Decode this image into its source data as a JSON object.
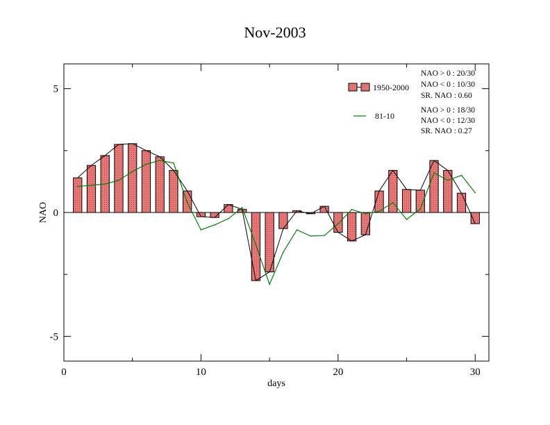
{
  "chart_data": {
    "type": "bar",
    "title": "Nov-2003",
    "xlabel": "days",
    "ylabel": "NAO",
    "xlim": [
      0,
      31
    ],
    "ylim": [
      -6,
      6
    ],
    "x_ticks": [
      0,
      10,
      20,
      30
    ],
    "x_tick_labels": [
      "0",
      "10",
      "20",
      "30"
    ],
    "y_ticks": [
      -5,
      0,
      5
    ],
    "y_tick_labels": [
      "-5",
      "0",
      "5"
    ],
    "grid": false,
    "legend_position": "top-right",
    "x": [
      1,
      2,
      3,
      4,
      5,
      6,
      7,
      8,
      9,
      10,
      11,
      12,
      13,
      14,
      15,
      16,
      17,
      18,
      19,
      20,
      21,
      22,
      23,
      24,
      25,
      26,
      27,
      28,
      29,
      30
    ],
    "series": [
      {
        "name": "1950-2000",
        "render": "bar",
        "fill": "#e87878",
        "values": [
          1.4,
          1.9,
          2.3,
          2.75,
          2.78,
          2.5,
          2.25,
          1.7,
          0.87,
          -0.17,
          -0.2,
          0.32,
          0.13,
          -2.75,
          -2.4,
          -0.65,
          0.07,
          -0.05,
          0.25,
          -0.8,
          -1.15,
          -0.9,
          0.87,
          1.7,
          0.93,
          0.9,
          2.1,
          1.7,
          0.78,
          -0.45
        ]
      },
      {
        "name": "81-10",
        "render": "line",
        "color": "#008000",
        "values": [
          1.05,
          1.1,
          1.15,
          1.3,
          1.65,
          1.95,
          2.1,
          2.0,
          0.4,
          -0.7,
          -0.5,
          -0.25,
          0.2,
          -1.3,
          -2.9,
          -1.6,
          -0.7,
          -0.95,
          -0.93,
          -0.45,
          0.12,
          -0.05,
          0.05,
          0.4,
          -0.28,
          0.15,
          1.6,
          1.3,
          1.5,
          0.8
        ]
      }
    ],
    "stats": [
      [
        "NAO > 0 : 20/30",
        "NAO < 0 : 10/30",
        "SR. NAO :  0.60"
      ],
      [
        "NAO > 0 : 18/30",
        "NAO < 0 : 12/30",
        "SR. NAO :  0.27"
      ]
    ]
  },
  "colors": {
    "bar_fill": "#e87878",
    "bar_outline": "#000000",
    "line_81_10": "#008000",
    "connector": "#000000"
  }
}
